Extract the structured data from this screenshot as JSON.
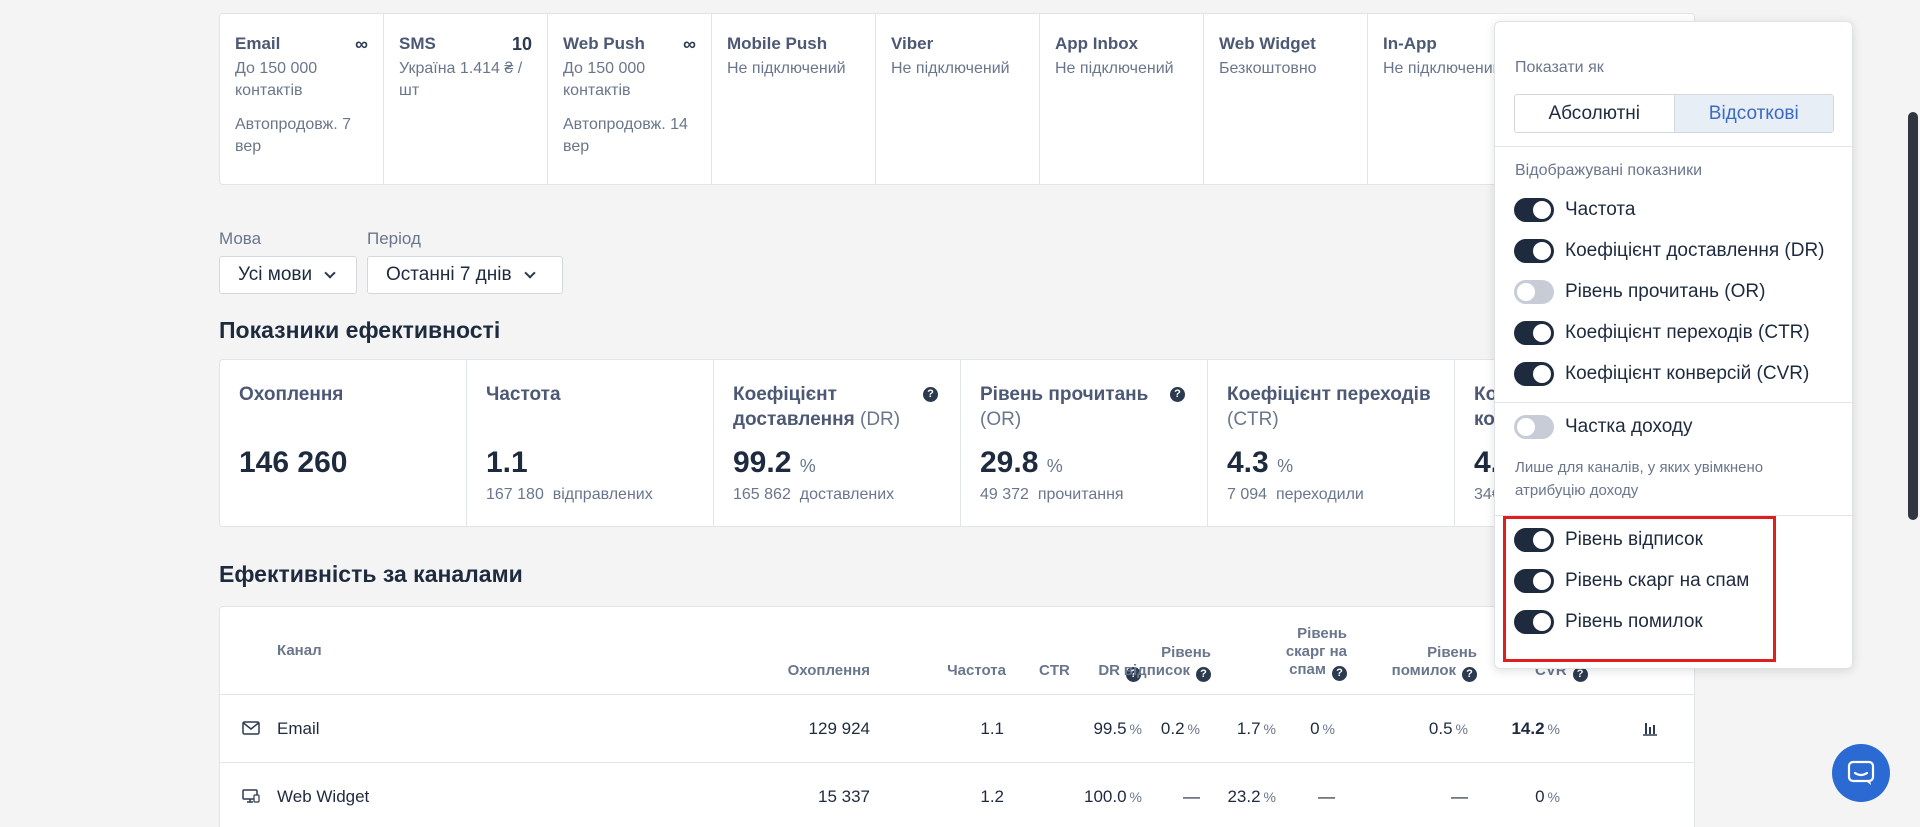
{
  "channels": [
    {
      "name": "Email",
      "badge": "∞",
      "line1": "До 150 000 контактів",
      "line2": "Автопродовж. 7 вер"
    },
    {
      "name": "SMS",
      "badge": "10",
      "line1": "Україна 1.414 ₴ / шт",
      "line2": ""
    },
    {
      "name": "Web Push",
      "badge": "∞",
      "line1": "До 150 000 контактів",
      "line2": "Автопродовж. 14 вер"
    },
    {
      "name": "Mobile Push",
      "badge": "",
      "line1": "Не підключений",
      "line2": ""
    },
    {
      "name": "Viber",
      "badge": "",
      "line1": "Не підключений",
      "line2": ""
    },
    {
      "name": "App Inbox",
      "badge": "",
      "line1": "Не підключений",
      "line2": ""
    },
    {
      "name": "Web Widget",
      "badge": "",
      "line1": "Безкоштовно",
      "line2": ""
    },
    {
      "name": "In-App",
      "badge": "",
      "line1": "Не підключений",
      "line2": ""
    }
  ],
  "filters": {
    "language_label": "Мова",
    "language_value": "Усі мови",
    "period_label": "Період",
    "period_value": "Останні 7 днів"
  },
  "kpi_title": "Показники ефективності",
  "kpis": [
    {
      "title": "Охоплення",
      "abbr": "",
      "value": "146 260",
      "unit": "",
      "sub_count": "",
      "sub_label": ""
    },
    {
      "title": "Частота",
      "abbr": "",
      "value": "1.1",
      "unit": "",
      "sub_count": "167 180",
      "sub_label": "відправлених"
    },
    {
      "title": "Коефіцієнт доставлення",
      "abbr": "(DR)",
      "value": "99.2",
      "unit": "%",
      "sub_count": "165 862",
      "sub_label": "доставлених"
    },
    {
      "title": "Рівень прочитань",
      "abbr": "(OR)",
      "value": "29.8",
      "unit": "%",
      "sub_count": "49 372",
      "sub_label": "прочитання"
    },
    {
      "title": "Коефіцієнт переходів",
      "abbr": "(CTR)",
      "value": "4.3",
      "unit": "%",
      "sub_count": "7 094",
      "sub_label": "переходили"
    },
    {
      "title": "Ко",
      "line2": "ко",
      "value": "4.",
      "sub_count": "34€"
    }
  ],
  "channels_title": "Ефективність за каналами",
  "table": {
    "headers": {
      "channel": "Канал",
      "reach": "Охоплення",
      "frequency": "Частота",
      "dr": "DR",
      "ctr": "CTR",
      "unsub": [
        "Рівень",
        "відписок"
      ],
      "spam": [
        "Рівень",
        "скарг на",
        "спам"
      ],
      "errors": [
        "Рівень",
        "помилок"
      ],
      "cvr": "CVR"
    },
    "rows": [
      {
        "channel": "Email",
        "reach": "129 924",
        "frequency": "1.1",
        "dr": "99.5",
        "ctr": "1.7",
        "unsub": "0.2",
        "spam": "0",
        "errors": "0.5",
        "cvr": "14.2"
      },
      {
        "channel": "Web Widget",
        "reach": "15 337",
        "frequency": "1.2",
        "dr": "100.0",
        "ctr": "23.2",
        "unsub": "—",
        "spam": "—",
        "errors": "—",
        "cvr": "0"
      }
    ],
    "pct": "%"
  },
  "popover": {
    "show_as_label": "Показати як",
    "absolute": "Абсолютні",
    "percent": "Відсоткові",
    "metrics_label": "Відображувані показники",
    "toggles": [
      {
        "label": "Частота",
        "on": true
      },
      {
        "label": "Коефіцієнт доставлення (DR)",
        "on": true
      },
      {
        "label": "Рівень прочитань (OR)",
        "on": false
      },
      {
        "label": "Коефіцієнт переходів (CTR)",
        "on": true
      },
      {
        "label": "Коефіцієнт конверсій (CVR)",
        "on": true
      }
    ],
    "revenue": {
      "label": "Частка доходу",
      "on": false
    },
    "revenue_note": "Лише для каналів, у яких увімкнено атрибуцію доходу",
    "extra_toggles": [
      {
        "label": "Рівень відписок",
        "on": true
      },
      {
        "label": "Рівень скарг на спам",
        "on": true
      },
      {
        "label": "Рівень помилок",
        "on": true
      }
    ]
  },
  "colors": {
    "highlight": "#e01e1e",
    "toggle_on": "#1e2a3e",
    "accent": "#3a6ac2",
    "chat": "#2c6ad3"
  }
}
